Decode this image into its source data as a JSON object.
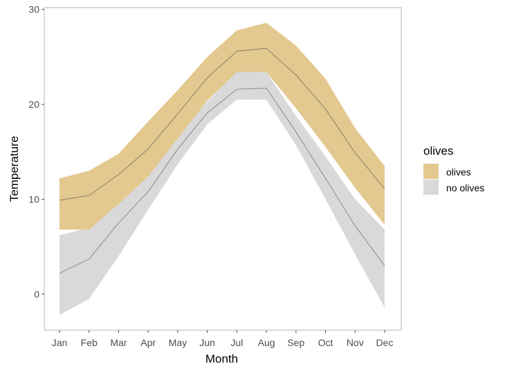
{
  "chart_data": {
    "type": "area",
    "xlabel": "Month",
    "ylabel": "Temperature",
    "categories": [
      "Jan",
      "Feb",
      "Mar",
      "Apr",
      "May",
      "Jun",
      "Jul",
      "Aug",
      "Sep",
      "Oct",
      "Nov",
      "Dec"
    ],
    "ylim": [
      -3.8,
      30.2
    ],
    "yticks": [
      0,
      10,
      20,
      30
    ],
    "grid": false,
    "legend": {
      "title": "olives",
      "position": "right",
      "entries": [
        {
          "label": "olives",
          "color": "#e3c88f"
        },
        {
          "label": "no olives",
          "color": "#d9d9d9"
        }
      ]
    },
    "series": [
      {
        "name": "no olives",
        "color": "#d9d9d9",
        "line_color": "#555555",
        "mean": [
          2.2,
          3.7,
          7.5,
          10.8,
          15.3,
          19.1,
          21.6,
          21.7,
          17.1,
          12.2,
          7.2,
          3.0
        ],
        "lower": [
          -2.2,
          -0.5,
          4.0,
          8.9,
          13.7,
          17.9,
          20.5,
          20.5,
          15.7,
          10.0,
          4.2,
          -1.4
        ],
        "upper": [
          6.2,
          7.0,
          9.5,
          12.4,
          16.8,
          20.3,
          23.5,
          23.4,
          18.8,
          14.5,
          10.0,
          6.8
        ]
      },
      {
        "name": "olives",
        "color": "#e3c88f",
        "line_color": "#555555",
        "mean": [
          9.9,
          10.4,
          12.6,
          15.3,
          19.0,
          22.8,
          25.6,
          25.9,
          23.1,
          19.5,
          14.9,
          11.1
        ],
        "lower": [
          6.8,
          6.8,
          9.5,
          12.4,
          16.4,
          20.4,
          23.4,
          23.4,
          19.6,
          15.5,
          11.2,
          7.3
        ],
        "upper": [
          12.2,
          13.0,
          14.8,
          18.2,
          21.5,
          25.0,
          27.8,
          28.6,
          26.2,
          22.7,
          17.5,
          13.5
        ]
      }
    ]
  }
}
